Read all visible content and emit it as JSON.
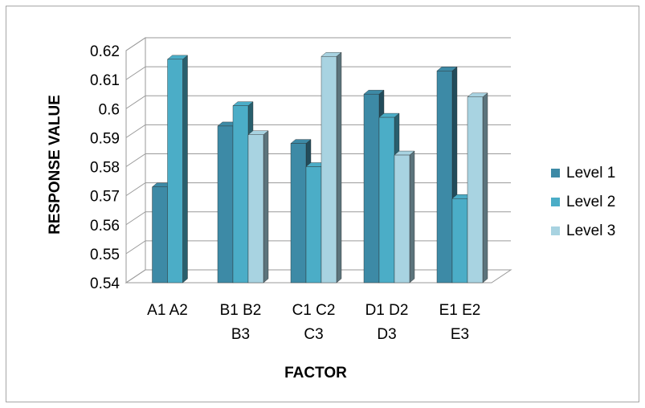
{
  "chart_data": {
    "type": "bar",
    "title": "",
    "xlabel": "FACTOR",
    "ylabel": "RESPONSE VALUE",
    "ylim": [
      0.54,
      0.62
    ],
    "yticks": [
      "0.54",
      "0.55",
      "0.56",
      "0.57",
      "0.58",
      "0.59",
      "0.6",
      "0.61",
      "0.62"
    ],
    "categories": [
      [
        "A1 A2"
      ],
      [
        "B1 B2",
        "B3"
      ],
      [
        "C1 C2",
        "C3"
      ],
      [
        "D1 D2",
        "D3"
      ],
      [
        "E1 E2",
        "E3"
      ]
    ],
    "series": [
      {
        "name": "Level 1",
        "color": "#3d8aa6",
        "values": [
          0.573,
          0.594,
          0.588,
          0.605,
          0.613
        ]
      },
      {
        "name": "Level 2",
        "color": "#4badc7",
        "values": [
          0.617,
          0.601,
          0.58,
          0.597,
          0.569
        ]
      },
      {
        "name": "Level 3",
        "color": "#a8d3e1",
        "values": [
          null,
          0.591,
          0.618,
          0.584,
          0.604
        ]
      }
    ],
    "grid": true,
    "legend_position": "right",
    "style": "3d-columns"
  }
}
